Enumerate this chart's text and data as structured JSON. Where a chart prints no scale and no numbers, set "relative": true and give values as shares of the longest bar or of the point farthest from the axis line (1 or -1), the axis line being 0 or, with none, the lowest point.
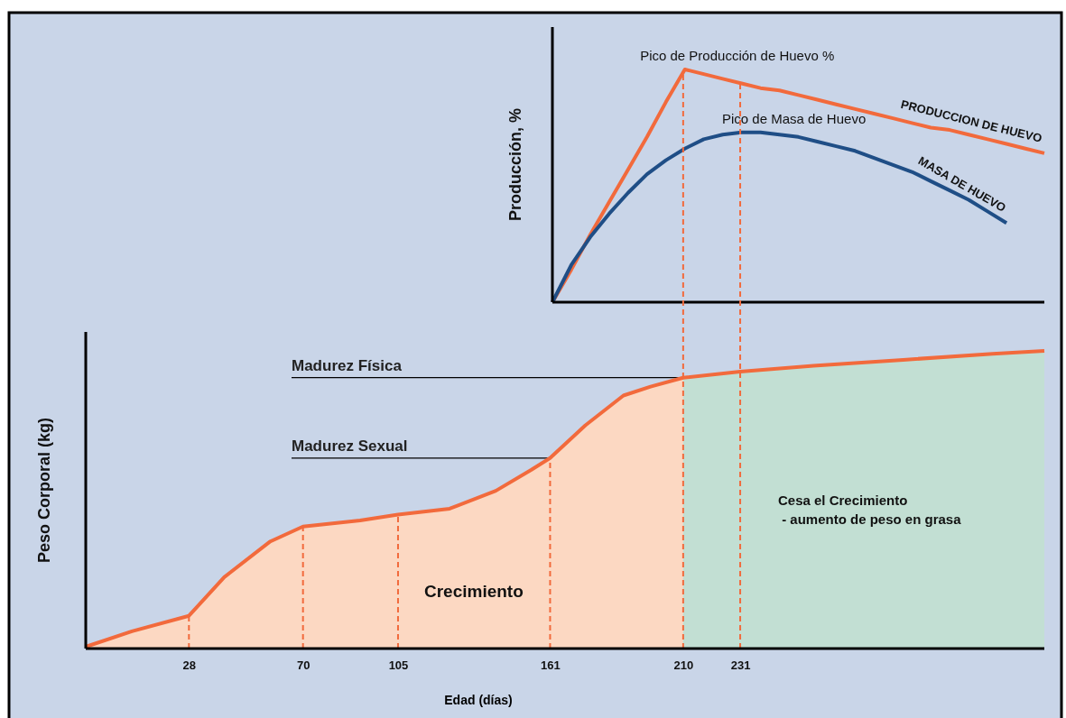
{
  "chart_data": [
    {
      "type": "line",
      "ylabel": "Producción, %",
      "relative": true,
      "tick_labels": false,
      "categories": [
        null,
        null,
        null,
        null,
        null,
        null,
        null,
        null,
        null,
        null,
        null,
        null,
        null,
        null,
        null,
        null,
        null,
        null,
        null,
        null,
        null,
        null,
        null,
        null,
        null,
        null,
        null
      ],
      "series": [
        {
          "name": "PRODUCCION DE HUEVO",
          "color": "#f26a3c",
          "values": [
            0,
            0.14,
            0.29,
            0.43,
            0.57,
            0.71,
            0.86,
            1,
            0.98,
            0.96,
            0.94,
            0.92,
            0.91,
            0.89,
            0.87,
            0.85,
            0.83,
            0.81,
            0.79,
            0.77,
            0.75,
            0.74,
            0.72,
            0.7,
            0.68,
            0.66,
            0.64
          ]
        },
        {
          "name": "MASA DE HUEVO",
          "color": "#1f4e86",
          "values": [
            0,
            0.16,
            0.28,
            0.38,
            0.47,
            0.55,
            0.61,
            0.66,
            0.7,
            0.72,
            0.73,
            0.73,
            0.72,
            0.71,
            0.69,
            0.67,
            0.65,
            0.62,
            0.59,
            0.56,
            0.52,
            0.48,
            0.44,
            0.39,
            0.34,
            null,
            null
          ]
        }
      ],
      "annotations": [
        "Pico de Producción de Huevo %",
        "Pico de Masa de Huevo"
      ]
    },
    {
      "type": "area",
      "xlabel": "Edad (días)",
      "ylabel": "Peso Corporal (kg)",
      "relative": true,
      "tick_labels": "x",
      "xlim": [
        -10,
        343
      ],
      "xticks": [
        28,
        70,
        105,
        161,
        210,
        231
      ],
      "series": [
        {
          "color": "#fcd8c2",
          "x": [
            -10,
            7,
            28,
            41,
            58,
            70,
            91,
            105,
            124,
            141,
            154,
            161,
            174,
            188,
            198,
            210
          ],
          "values": [
            0.006,
            0.058,
            0.11,
            0.24,
            0.36,
            0.41,
            0.43,
            0.45,
            0.47,
            0.53,
            0.6,
            0.64,
            0.75,
            0.85,
            0.88,
            0.91
          ]
        },
        {
          "color": "#c2dfd3",
          "x": [
            210,
            231,
            258,
            291,
            324,
            343
          ],
          "values": [
            0.91,
            0.93,
            0.95,
            0.97,
            0.99,
            1
          ]
        },
        {
          "type": "line",
          "color": "#f26a3c",
          "x": [
            -10,
            7,
            28,
            41,
            58,
            70,
            91,
            105,
            124,
            141,
            154,
            161,
            174,
            188,
            198,
            210,
            231,
            258,
            291,
            324,
            343
          ],
          "values": [
            0.006,
            0.058,
            0.11,
            0.24,
            0.36,
            0.41,
            0.43,
            0.45,
            0.47,
            0.53,
            0.6,
            0.64,
            0.75,
            0.85,
            0.88,
            0.91,
            0.93,
            0.95,
            0.97,
            0.99,
            1
          ]
        }
      ],
      "ref_lines": [
        {
          "axis": "x",
          "value": 28,
          "color": "#f26a3c",
          "line_style": "dashed"
        },
        {
          "axis": "x",
          "value": 70,
          "color": "#f26a3c",
          "line_style": "dashed"
        },
        {
          "axis": "x",
          "value": 105,
          "color": "#f26a3c",
          "line_style": "dashed"
        },
        {
          "axis": "x",
          "value": 161,
          "color": "#f26a3c",
          "line_style": "dashed"
        },
        {
          "axis": "x",
          "value": 210,
          "color": "#f26a3c",
          "line_style": "dashed"
        },
        {
          "axis": "x",
          "value": 231,
          "color": "#f26a3c",
          "line_style": "dashed"
        },
        {
          "axis": "y",
          "value": 0.91,
          "label": "Madurez Física",
          "color": "#000000"
        },
        {
          "axis": "y",
          "value": 0.64,
          "label": "Madurez Sexual",
          "color": "#000000"
        }
      ],
      "annotations": [
        "Crecimiento",
        "Cesa el Crecimiento\n - aumento de peso en grasa"
      ]
    }
  ]
}
